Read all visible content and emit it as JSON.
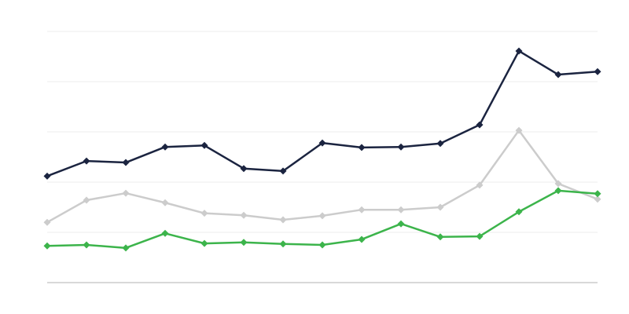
{
  "chart_data": {
    "type": "line",
    "categories": [
      null,
      null,
      null,
      null,
      null,
      null,
      null,
      null,
      null,
      null,
      null,
      null,
      null,
      null,
      null
    ],
    "series": [
      {
        "color": "#1b2440",
        "values": [
          2.12,
          2.42,
          2.39,
          2.7,
          2.73,
          2.27,
          2.22,
          2.78,
          2.69,
          2.7,
          2.77,
          3.14,
          4.61,
          4.14,
          4.2
        ]
      },
      {
        "color": "#cccccc",
        "values": [
          1.2,
          1.64,
          1.78,
          1.59,
          1.38,
          1.34,
          1.25,
          1.33,
          1.45,
          1.45,
          1.5,
          1.94,
          3.03,
          1.97,
          1.66
        ]
      },
      {
        "color": "#3cb44b",
        "values": [
          0.73,
          0.75,
          0.69,
          0.98,
          0.78,
          0.8,
          0.77,
          0.75,
          0.86,
          1.17,
          0.91,
          0.92,
          1.41,
          1.83,
          1.77
        ]
      }
    ],
    "ylim": [
      0,
      5
    ],
    "yticks": [
      0,
      1,
      2,
      3,
      4,
      5
    ],
    "grid": true
  }
}
